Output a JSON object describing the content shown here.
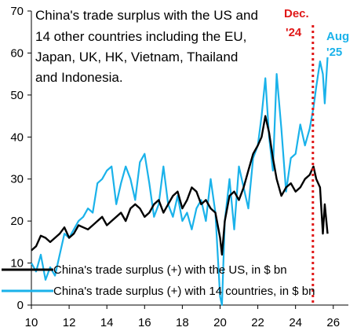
{
  "chart_data": {
    "type": "line",
    "title_lines": [
      "China's trade surplus with the US and",
      "14  other countries including the EU,",
      "Japan, UK, HK, Vietnam, Thailand",
      "and Indonesia."
    ],
    "xlabel": "",
    "ylabel": "",
    "xlim": [
      2010,
      2026.8
    ],
    "ylim": [
      0,
      70
    ],
    "x_ticks": [
      2010,
      2012,
      2014,
      2016,
      2018,
      2020,
      2022,
      2024,
      2026
    ],
    "x_tick_labels": [
      "10",
      "12",
      "14",
      "16",
      "18",
      "20",
      "22",
      "24",
      "26"
    ],
    "y_ticks": [
      0,
      10,
      20,
      30,
      40,
      50,
      60,
      70
    ],
    "grid": false,
    "legend": "bottom-left",
    "series": [
      {
        "name": "China's trade surplus (+) with the US, in $ bn",
        "color": "#000000",
        "x": [
          2010.0,
          2010.25,
          2010.5,
          2010.75,
          2011.0,
          2011.25,
          2011.5,
          2011.75,
          2012.0,
          2012.25,
          2012.5,
          2012.75,
          2013.0,
          2013.25,
          2013.5,
          2013.75,
          2014.0,
          2014.25,
          2014.5,
          2014.75,
          2015.0,
          2015.25,
          2015.5,
          2015.75,
          2016.0,
          2016.25,
          2016.5,
          2016.75,
          2017.0,
          2017.25,
          2017.5,
          2017.75,
          2018.0,
          2018.25,
          2018.5,
          2018.75,
          2019.0,
          2019.25,
          2019.5,
          2019.75,
          2020.0,
          2020.1,
          2020.25,
          2020.5,
          2020.75,
          2021.0,
          2021.25,
          2021.5,
          2021.75,
          2022.0,
          2022.2,
          2022.4,
          2022.6,
          2022.8,
          2023.0,
          2023.25,
          2023.5,
          2023.75,
          2024.0,
          2024.25,
          2024.5,
          2024.75,
          2024.95,
          2025.1,
          2025.3,
          2025.45,
          2025.55,
          2025.7
        ],
        "y": [
          13,
          14,
          16.5,
          16,
          15,
          16,
          17,
          18.5,
          16,
          17,
          19,
          18.5,
          18,
          19,
          20,
          21,
          19,
          20,
          21,
          22,
          20,
          23,
          24,
          23,
          21,
          22,
          24,
          25,
          22,
          24,
          26,
          27,
          23,
          25,
          28,
          27,
          24,
          25,
          23,
          22,
          16,
          12,
          20,
          26,
          27,
          25,
          28,
          32,
          36,
          38,
          40,
          45,
          41,
          35,
          30,
          26,
          28,
          29,
          27,
          28,
          30,
          31,
          33,
          30,
          28,
          17,
          24,
          17
        ]
      },
      {
        "name": "China's trade surplus (+) with 14 countries, in $ bn",
        "color": "#1ab2ea",
        "x": [
          2010.0,
          2010.25,
          2010.5,
          2010.75,
          2011.0,
          2011.25,
          2011.5,
          2011.75,
          2012.0,
          2012.25,
          2012.5,
          2012.75,
          2013.0,
          2013.25,
          2013.5,
          2013.75,
          2014.0,
          2014.25,
          2014.5,
          2014.75,
          2015.0,
          2015.25,
          2015.5,
          2015.75,
          2016.0,
          2016.25,
          2016.5,
          2016.75,
          2017.0,
          2017.25,
          2017.5,
          2017.75,
          2018.0,
          2018.25,
          2018.5,
          2018.75,
          2019.0,
          2019.25,
          2019.5,
          2019.75,
          2020.0,
          2020.1,
          2020.25,
          2020.5,
          2020.75,
          2021.0,
          2021.25,
          2021.5,
          2021.75,
          2022.0,
          2022.2,
          2022.4,
          2022.6,
          2022.8,
          2023.0,
          2023.25,
          2023.5,
          2023.75,
          2024.0,
          2024.25,
          2024.5,
          2024.75,
          2024.95,
          2025.1,
          2025.3,
          2025.45,
          2025.55,
          2025.7
        ],
        "y": [
          10,
          8,
          12,
          6,
          9,
          7,
          12,
          17,
          16,
          18,
          20,
          21,
          23,
          22,
          29,
          30,
          32,
          33,
          24,
          29,
          33,
          30,
          25,
          34,
          36,
          29,
          21,
          24,
          33,
          24,
          21,
          26,
          20,
          22,
          18,
          23,
          25,
          20,
          30,
          22,
          2,
          0,
          20,
          30,
          18,
          33,
          28,
          23,
          35,
          38,
          45,
          54,
          40,
          32,
          55,
          42,
          27,
          35,
          36,
          43,
          38,
          42,
          47,
          52,
          58,
          55,
          48,
          59
        ]
      }
    ],
    "annotations": [
      {
        "lines": [
          "Dec.",
          "'24"
        ],
        "color": "#e01818"
      },
      {
        "lines": [
          "Aug",
          "'25"
        ],
        "color": "#1ab2ea"
      }
    ],
    "reference_line": {
      "x": 2024.92,
      "color": "#e01818",
      "style": "dotted"
    }
  }
}
